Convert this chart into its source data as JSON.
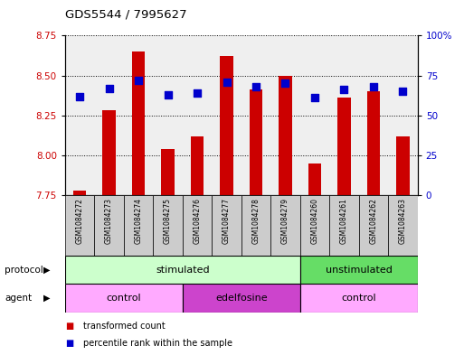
{
  "title": "GDS5544 / 7995627",
  "samples": [
    "GSM1084272",
    "GSM1084273",
    "GSM1084274",
    "GSM1084275",
    "GSM1084276",
    "GSM1084277",
    "GSM1084278",
    "GSM1084279",
    "GSM1084260",
    "GSM1084261",
    "GSM1084262",
    "GSM1084263"
  ],
  "transformed_count": [
    7.78,
    8.28,
    8.65,
    8.04,
    8.12,
    8.62,
    8.41,
    8.5,
    7.95,
    8.36,
    8.4,
    8.12
  ],
  "percentile_rank": [
    62,
    67,
    72,
    63,
    64,
    71,
    68,
    70,
    61,
    66,
    68,
    65
  ],
  "ylim_left": [
    7.75,
    8.75
  ],
  "ylim_right": [
    0,
    100
  ],
  "yticks_left": [
    7.75,
    8.0,
    8.25,
    8.5,
    8.75
  ],
  "yticks_right": [
    0,
    25,
    50,
    75,
    100
  ],
  "ytick_labels_right": [
    "0",
    "25",
    "50",
    "75",
    "100%"
  ],
  "bar_color": "#cc0000",
  "dot_color": "#0000cc",
  "bar_width": 0.45,
  "dot_size": 30,
  "protocol_stimulated_color": "#ccffcc",
  "protocol_unstimulated_color": "#66dd66",
  "agent_control_color": "#ffaaff",
  "agent_edelfosine_color": "#cc44cc",
  "grid_color": "#000000",
  "tick_label_color_left": "#cc0000",
  "tick_label_color_right": "#0000cc",
  "bg_color": "#ffffff",
  "sample_bg_color": "#cccccc"
}
